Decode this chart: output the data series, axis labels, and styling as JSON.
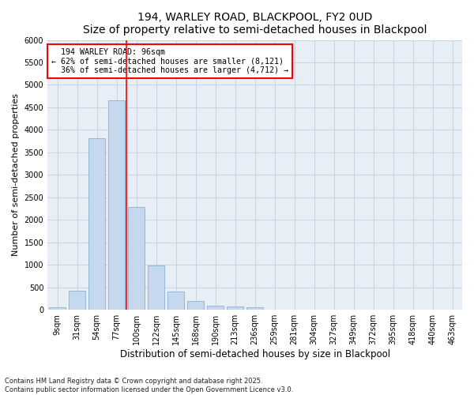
{
  "title1": "194, WARLEY ROAD, BLACKPOOL, FY2 0UD",
  "title2": "Size of property relative to semi-detached houses in Blackpool",
  "xlabel": "Distribution of semi-detached houses by size in Blackpool",
  "ylabel": "Number of semi-detached properties",
  "categories": [
    "9sqm",
    "31sqm",
    "54sqm",
    "77sqm",
    "100sqm",
    "122sqm",
    "145sqm",
    "168sqm",
    "190sqm",
    "213sqm",
    "236sqm",
    "259sqm",
    "281sqm",
    "304sqm",
    "327sqm",
    "349sqm",
    "372sqm",
    "395sqm",
    "418sqm",
    "440sqm",
    "463sqm"
  ],
  "values": [
    50,
    430,
    3820,
    4650,
    2290,
    980,
    400,
    200,
    100,
    80,
    50,
    0,
    0,
    0,
    0,
    0,
    0,
    0,
    0,
    0,
    0
  ],
  "bar_color": "#c5d8ee",
  "bar_edge_color": "#7ba8cc",
  "grid_color": "#c8d4e4",
  "background_color": "#e8eef6",
  "property_label": "194 WARLEY ROAD: 96sqm",
  "pct_smaller": 62,
  "count_smaller": 8121,
  "pct_larger": 36,
  "count_larger": 4712,
  "vline_color": "red",
  "vline_x_index": 4,
  "ylim": [
    0,
    6000
  ],
  "yticks": [
    0,
    500,
    1000,
    1500,
    2000,
    2500,
    3000,
    3500,
    4000,
    4500,
    5000,
    5500,
    6000
  ],
  "footer": "Contains HM Land Registry data © Crown copyright and database right 2025.\nContains public sector information licensed under the Open Government Licence v3.0.",
  "title_fontsize": 10,
  "tick_fontsize": 7,
  "ylabel_fontsize": 8,
  "xlabel_fontsize": 8.5
}
